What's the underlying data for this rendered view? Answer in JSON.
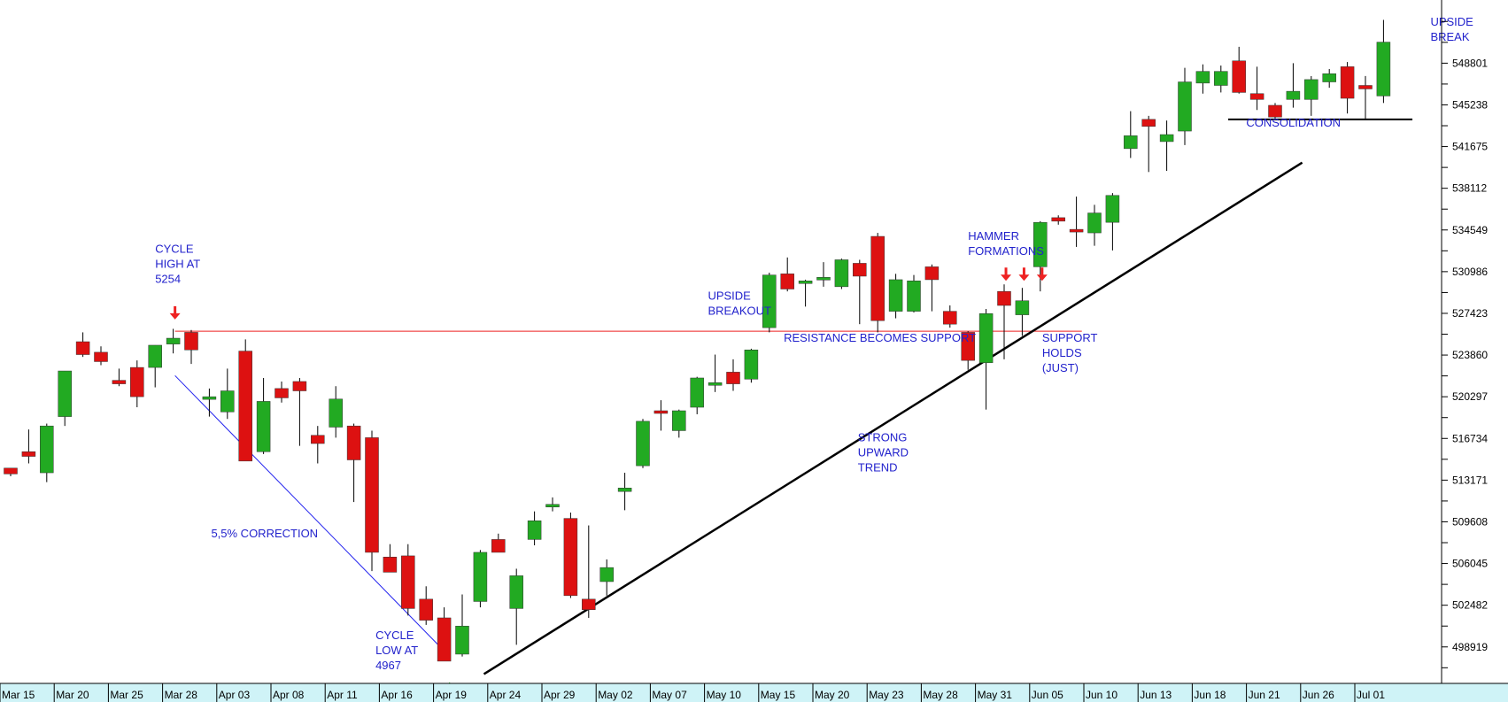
{
  "chart_data": {
    "type": "candlestick",
    "title": "",
    "xlabel": "",
    "ylabel": "",
    "ylim": [
      495800,
      554200
    ],
    "y_ticks": [
      498919,
      502482,
      506045,
      509608,
      513171,
      516734,
      520297,
      523860,
      527423,
      530986,
      534549,
      538112,
      541675,
      545238,
      548801
    ],
    "x_tick_labels": [
      "Mar 15",
      "Mar 20",
      "Mar 25",
      "Mar 28",
      "Apr 03",
      "Apr 08",
      "Apr 11",
      "Apr 16",
      "Apr 19",
      "Apr 24",
      "Apr 29",
      "May 02",
      "May 07",
      "May 10",
      "May 15",
      "May 20",
      "May 23",
      "May 28",
      "May 31",
      "Jun 05",
      "Jun 10",
      "Jun 13",
      "Jun 18",
      "Jun 21",
      "Jun 26",
      "Jul 01"
    ],
    "up_color": "#22aa22",
    "down_color": "#dd1111",
    "candles": [
      {
        "o": 514200,
        "h": 514200,
        "l": 513500,
        "c": 513700
      },
      {
        "o": 515600,
        "h": 517500,
        "l": 514600,
        "c": 515200
      },
      {
        "o": 513800,
        "h": 518000,
        "l": 513000,
        "c": 517800
      },
      {
        "o": 518600,
        "h": 522500,
        "l": 517800,
        "c": 522500
      },
      {
        "o": 525000,
        "h": 525800,
        "l": 523700,
        "c": 523900
      },
      {
        "o": 524100,
        "h": 524600,
        "l": 523000,
        "c": 523300
      },
      {
        "o": 521700,
        "h": 522700,
        "l": 521200,
        "c": 521400
      },
      {
        "o": 522800,
        "h": 523400,
        "l": 519400,
        "c": 520300
      },
      {
        "o": 522800,
        "h": 524700,
        "l": 521100,
        "c": 524700
      },
      {
        "o": 524800,
        "h": 526100,
        "l": 524000,
        "c": 525300
      },
      {
        "o": 525800,
        "h": 526000,
        "l": 523100,
        "c": 524300
      },
      {
        "o": 520200,
        "h": 521000,
        "l": 518600,
        "c": 520300
      },
      {
        "o": 519000,
        "h": 522700,
        "l": 518400,
        "c": 520800
      },
      {
        "o": 524200,
        "h": 525200,
        "l": 515200,
        "c": 514800
      },
      {
        "o": 515600,
        "h": 521900,
        "l": 515400,
        "c": 519900
      },
      {
        "o": 521000,
        "h": 521600,
        "l": 519800,
        "c": 520200
      },
      {
        "o": 521600,
        "h": 521900,
        "l": 516100,
        "c": 520800
      },
      {
        "o": 517000,
        "h": 517800,
        "l": 514600,
        "c": 516300
      },
      {
        "o": 517700,
        "h": 521200,
        "l": 516800,
        "c": 520100
      },
      {
        "o": 517800,
        "h": 518000,
        "l": 511300,
        "c": 514900
      },
      {
        "o": 516800,
        "h": 517400,
        "l": 505400,
        "c": 507000
      },
      {
        "o": 506600,
        "h": 507700,
        "l": 505400,
        "c": 505300
      },
      {
        "o": 506700,
        "h": 507700,
        "l": 501600,
        "c": 502200
      },
      {
        "o": 503000,
        "h": 504100,
        "l": 500800,
        "c": 501200
      },
      {
        "o": 501400,
        "h": 502300,
        "l": 497800,
        "c": 497700
      },
      {
        "o": 498300,
        "h": 503400,
        "l": 498100,
        "c": 500700
      },
      {
        "o": 502800,
        "h": 507200,
        "l": 502300,
        "c": 507000
      },
      {
        "o": 508100,
        "h": 508600,
        "l": 507200,
        "c": 507000
      },
      {
        "o": 502200,
        "h": 505600,
        "l": 499100,
        "c": 505000
      },
      {
        "o": 508100,
        "h": 510500,
        "l": 507600,
        "c": 509700
      },
      {
        "o": 510900,
        "h": 511700,
        "l": 510500,
        "c": 511100
      },
      {
        "o": 509900,
        "h": 510400,
        "l": 503100,
        "c": 503300
      },
      {
        "o": 503000,
        "h": 509300,
        "l": 501400,
        "c": 502100
      },
      {
        "o": 504500,
        "h": 506400,
        "l": 503300,
        "c": 505700
      },
      {
        "o": 512200,
        "h": 513800,
        "l": 510600,
        "c": 512500
      },
      {
        "o": 514400,
        "h": 518400,
        "l": 514200,
        "c": 518200
      },
      {
        "o": 519100,
        "h": 520000,
        "l": 517400,
        "c": 519000
      },
      {
        "o": 517400,
        "h": 519200,
        "l": 516800,
        "c": 519100
      },
      {
        "o": 519400,
        "h": 522000,
        "l": 518800,
        "c": 521900
      },
      {
        "o": 521300,
        "h": 523900,
        "l": 520700,
        "c": 521500
      },
      {
        "o": 522400,
        "h": 523500,
        "l": 520800,
        "c": 521400
      },
      {
        "o": 521800,
        "h": 524400,
        "l": 521500,
        "c": 524300
      },
      {
        "o": 526200,
        "h": 530900,
        "l": 525800,
        "c": 530700
      },
      {
        "o": 530800,
        "h": 532200,
        "l": 529300,
        "c": 529500
      },
      {
        "o": 530000,
        "h": 530300,
        "l": 528000,
        "c": 530200
      },
      {
        "o": 530300,
        "h": 531800,
        "l": 529700,
        "c": 530500
      },
      {
        "o": 529700,
        "h": 532100,
        "l": 529500,
        "c": 532000
      },
      {
        "o": 531700,
        "h": 532000,
        "l": 526500,
        "c": 530600
      },
      {
        "o": 534000,
        "h": 534300,
        "l": 525800,
        "c": 526800
      },
      {
        "o": 527600,
        "h": 530800,
        "l": 527000,
        "c": 530300
      },
      {
        "o": 527600,
        "h": 530700,
        "l": 527500,
        "c": 530200
      },
      {
        "o": 531400,
        "h": 531600,
        "l": 527600,
        "c": 530300
      },
      {
        "o": 527600,
        "h": 528100,
        "l": 526200,
        "c": 526500
      },
      {
        "o": 525800,
        "h": 525900,
        "l": 522600,
        "c": 523400
      },
      {
        "o": 523200,
        "h": 527800,
        "l": 519200,
        "c": 527400
      },
      {
        "o": 529300,
        "h": 529900,
        "l": 523500,
        "c": 528100
      },
      {
        "o": 527300,
        "h": 529600,
        "l": 525500,
        "c": 528500
      },
      {
        "o": 531400,
        "h": 535300,
        "l": 529300,
        "c": 535200
      },
      {
        "o": 535600,
        "h": 535800,
        "l": 535000,
        "c": 535300
      },
      {
        "o": 534600,
        "h": 537400,
        "l": 533100,
        "c": 534500
      },
      {
        "o": 534300,
        "h": 536700,
        "l": 533200,
        "c": 536000
      },
      {
        "o": 535200,
        "h": 537700,
        "l": 532800,
        "c": 537500
      },
      {
        "o": 541500,
        "h": 544700,
        "l": 540700,
        "c": 542600
      },
      {
        "o": 544000,
        "h": 544300,
        "l": 539500,
        "c": 543400
      },
      {
        "o": 542100,
        "h": 543900,
        "l": 539600,
        "c": 542700
      },
      {
        "o": 543000,
        "h": 548400,
        "l": 541800,
        "c": 547200
      },
      {
        "o": 547100,
        "h": 548700,
        "l": 546200,
        "c": 548100
      },
      {
        "o": 546900,
        "h": 548600,
        "l": 546300,
        "c": 548100
      },
      {
        "o": 549000,
        "h": 550200,
        "l": 546200,
        "c": 546300
      },
      {
        "o": 546200,
        "h": 548500,
        "l": 544800,
        "c": 545700
      },
      {
        "o": 545200,
        "h": 545400,
        "l": 544000,
        "c": 544200
      },
      {
        "o": 545700,
        "h": 548800,
        "l": 545000,
        "c": 546400
      },
      {
        "o": 545700,
        "h": 547700,
        "l": 544300,
        "c": 547400
      },
      {
        "o": 547200,
        "h": 548300,
        "l": 546700,
        "c": 547900
      },
      {
        "o": 548500,
        "h": 548900,
        "l": 544500,
        "c": 545800
      },
      {
        "o": 546900,
        "h": 547700,
        "l": 544000,
        "c": 546600
      },
      {
        "o": 546000,
        "h": 552500,
        "l": 545400,
        "c": 550600
      }
    ],
    "overlay_lines": [
      {
        "name": "resistance-support-line",
        "color": "#ee2222",
        "width": 1,
        "x1": 9.1,
        "y1": 525900,
        "x2": 59.3,
        "y2": 525900
      },
      {
        "name": "correction-line",
        "color": "#2222ee",
        "width": 1,
        "x1": 9.1,
        "y1": 522100,
        "x2": 24.3,
        "y2": 498100
      },
      {
        "name": "uptrend-line",
        "color": "#000000",
        "width": 2.5,
        "x1": 26.2,
        "y1": 496600,
        "x2": 71.5,
        "y2": 540300
      },
      {
        "name": "consolidation-line",
        "color": "#000000",
        "width": 2,
        "x1": 67.4,
        "y1": 544000,
        "x2": 77.6,
        "y2": 544000
      }
    ],
    "arrows": [
      {
        "name": "cycle-high-arrow",
        "color": "#ee2222",
        "dir": "down",
        "x": 9.1,
        "y": 526900
      },
      {
        "name": "cycle-low-arrow",
        "color": "#22cc22",
        "dir": "up",
        "x": 24.3,
        "y": 495900
      },
      {
        "name": "hammer-arrow-1",
        "color": "#ee2222",
        "dir": "down",
        "x": 55.1,
        "y": 530200
      },
      {
        "name": "hammer-arrow-2",
        "color": "#ee2222",
        "dir": "down",
        "x": 56.1,
        "y": 530200
      },
      {
        "name": "hammer-arrow-3",
        "color": "#ee2222",
        "dir": "down",
        "x": 57.1,
        "y": 530200
      }
    ],
    "annotations": [
      {
        "name": "cycle-high-label",
        "text": "CYCLE\nHIGH AT\n5254",
        "x": 8.0,
        "y": 532600,
        "color": "#2222cc"
      },
      {
        "name": "correction-label",
        "text": "5,5% CORRECTION",
        "x": 11.1,
        "y": 508300,
        "color": "#2222cc"
      },
      {
        "name": "cycle-low-label",
        "text": "CYCLE\nLOW AT\n4967",
        "x": 20.2,
        "y": 499600,
        "color": "#2222cc"
      },
      {
        "name": "upside-breakout-label",
        "text": "UPSIDE\nBREAKOUT",
        "x": 38.6,
        "y": 528600,
        "color": "#2222cc"
      },
      {
        "name": "resistance-support-label",
        "text": "RESISTANCE BECOMES SUPPORT",
        "x": 42.8,
        "y": 525000,
        "color": "#2222cc"
      },
      {
        "name": "strong-trend-label",
        "text": "STRONG\nUPWARD\nTREND",
        "x": 46.9,
        "y": 516500,
        "color": "#2222cc"
      },
      {
        "name": "hammer-label",
        "text": "HAMMER\nFORMATIONS",
        "x": 53.0,
        "y": 533700,
        "color": "#2222cc"
      },
      {
        "name": "support-holds-label",
        "text": "SUPPORT\nHOLDS\n(JUST)",
        "x": 57.1,
        "y": 525000,
        "color": "#2222cc"
      },
      {
        "name": "consolidation-label",
        "text": "CONSOLIDATION",
        "x": 68.4,
        "y": 543400,
        "color": "#2222cc"
      },
      {
        "name": "upside-break-label",
        "text": "UPSIDE\nBREAK",
        "x": 78.6,
        "y": 552000,
        "color": "#2222cc"
      }
    ],
    "grid": false,
    "legend": "none"
  }
}
